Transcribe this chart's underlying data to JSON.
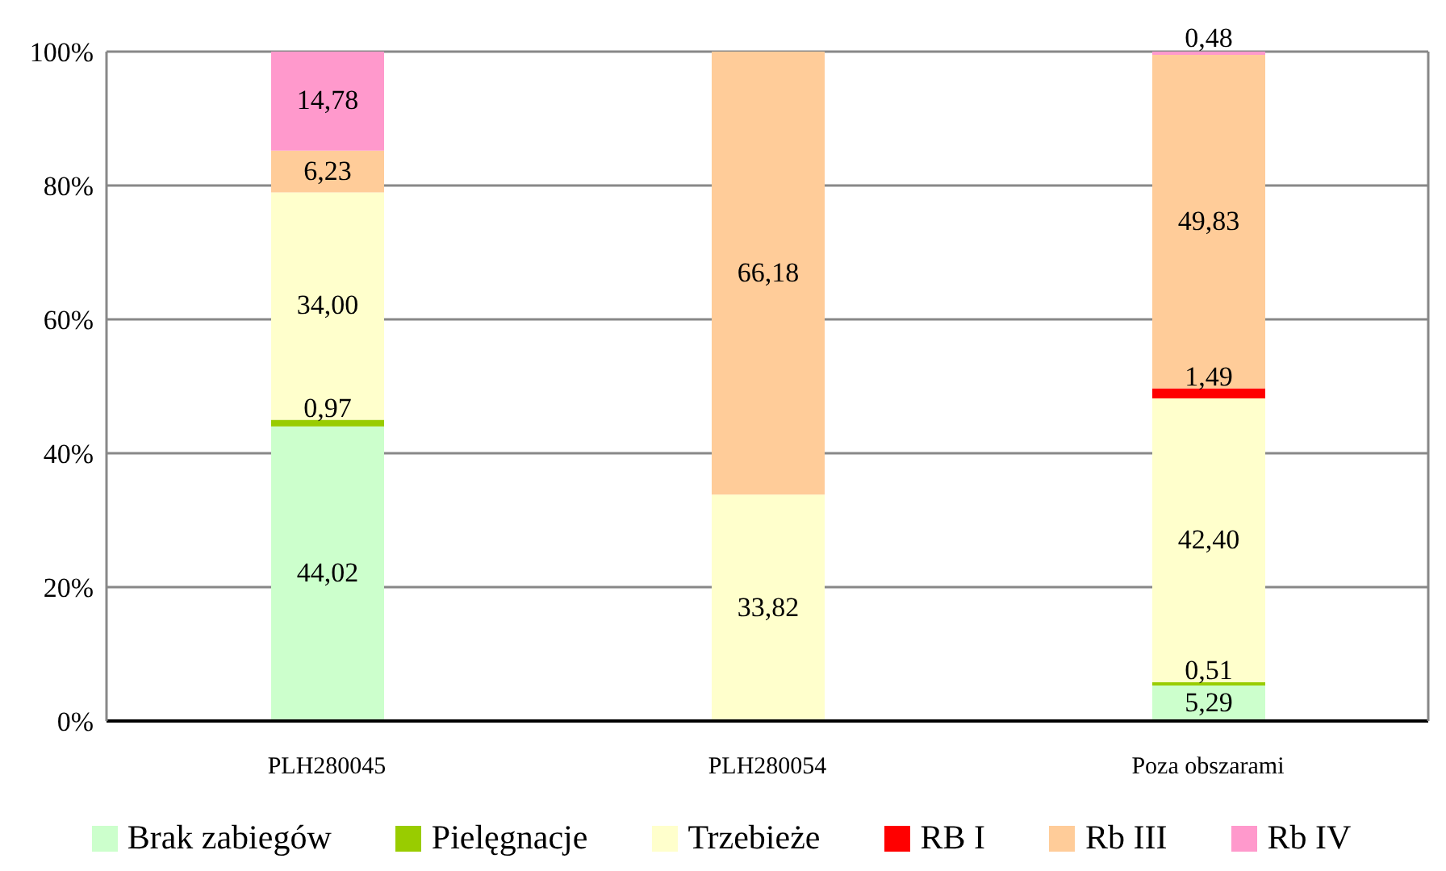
{
  "chart_data": {
    "type": "bar",
    "stacked": true,
    "categories": [
      "PLH280045",
      "PLH280054",
      "Poza obszarami"
    ],
    "series": [
      {
        "name": "Brak zabiegów",
        "color": "#ccffcc",
        "values": [
          44.02,
          null,
          5.29
        ],
        "value_labels": [
          "44,02",
          null,
          "5,29"
        ]
      },
      {
        "name": "Pielęgnacje",
        "color": "#99cc00",
        "values": [
          0.97,
          null,
          0.51
        ],
        "value_labels": [
          "0,97",
          null,
          "0,51"
        ]
      },
      {
        "name": "Trzebieże",
        "color": "#ffffcc",
        "values": [
          34.0,
          33.82,
          42.4
        ],
        "value_labels": [
          "34,00",
          "33,82",
          "42,40"
        ]
      },
      {
        "name": "RB I",
        "color": "#ff0000",
        "values": [
          null,
          null,
          1.49
        ],
        "value_labels": [
          null,
          null,
          "1,49"
        ]
      },
      {
        "name": "Rb III",
        "color": "#ffcc99",
        "values": [
          6.23,
          66.18,
          49.83
        ],
        "value_labels": [
          "6,23",
          "66,18",
          "49,83"
        ]
      },
      {
        "name": "Rb IV",
        "color": "#ff99cc",
        "values": [
          14.78,
          null,
          0.48
        ],
        "value_labels": [
          "14,78",
          null,
          "0,48"
        ]
      }
    ],
    "ylim": [
      0,
      100
    ],
    "yticks": [
      {
        "value": 0,
        "label": "0%"
      },
      {
        "value": 20,
        "label": "20%"
      },
      {
        "value": 40,
        "label": "40%"
      },
      {
        "value": 60,
        "label": "60%"
      },
      {
        "value": 80,
        "label": "80%"
      },
      {
        "value": 100,
        "label": "100%"
      }
    ],
    "grid": "y",
    "legend": "bottom"
  }
}
